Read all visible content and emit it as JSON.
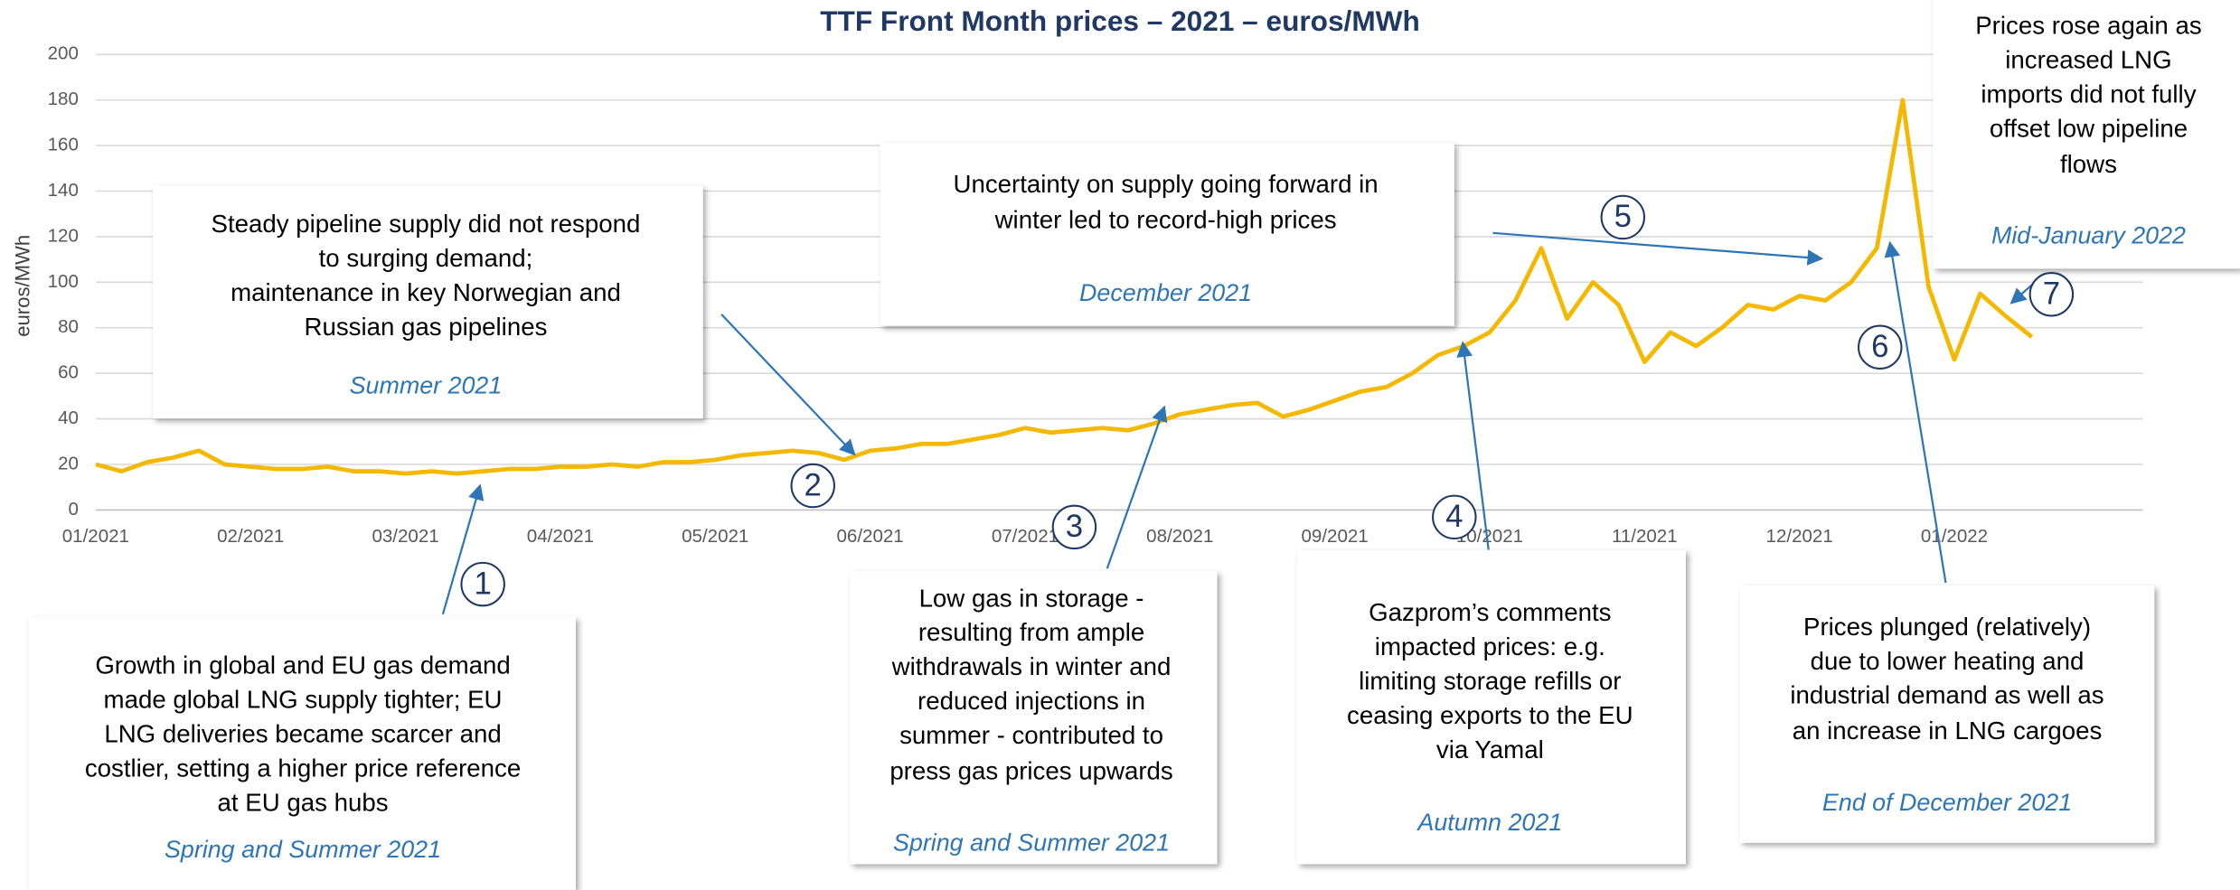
{
  "chart_data": {
    "type": "line",
    "title": "TTF Front Month prices – 2021 – euros/MWh",
    "y_label": "euros/MWh",
    "categories": [
      "01/2021",
      null,
      null,
      null,
      null,
      null,
      "02/2021",
      null,
      null,
      null,
      null,
      null,
      "03/2021",
      null,
      null,
      null,
      null,
      null,
      "04/2021",
      null,
      null,
      null,
      null,
      null,
      "05/2021",
      null,
      null,
      null,
      null,
      null,
      "06/2021",
      null,
      null,
      null,
      null,
      null,
      "07/2021",
      null,
      null,
      null,
      null,
      null,
      "08/2021",
      null,
      null,
      null,
      null,
      null,
      "09/2021",
      null,
      null,
      null,
      null,
      null,
      "10/2021",
      null,
      null,
      null,
      null,
      null,
      "11/2021",
      null,
      null,
      null,
      null,
      null,
      "12/2021",
      null,
      null,
      null,
      null,
      null,
      "01/2022",
      null,
      null,
      null
    ],
    "series": [
      {
        "name": "TTF Front Month",
        "color": "#f5b800",
        "values": [
          20,
          17,
          21,
          23,
          26,
          20,
          19,
          18,
          18,
          19,
          17,
          17,
          16,
          17,
          16,
          17,
          18,
          18,
          19,
          19,
          20,
          19,
          21,
          21,
          22,
          24,
          25,
          26,
          25,
          22,
          26,
          27,
          29,
          29,
          31,
          33,
          36,
          34,
          35,
          36,
          35,
          38,
          42,
          44,
          46,
          47,
          41,
          44,
          48,
          52,
          54,
          60,
          68,
          72,
          78,
          92,
          115,
          84,
          100,
          90,
          65,
          78,
          72,
          80,
          90,
          88,
          94,
          92,
          100,
          115,
          180,
          98,
          66,
          95,
          85,
          76
        ]
      }
    ],
    "ylim": [
      0,
      200
    ],
    "yticks": [
      0,
      20,
      40,
      60,
      80,
      100,
      120,
      140,
      160,
      180,
      200
    ],
    "grid": true,
    "annotations": [
      {
        "number": "1",
        "lines": [
          "Growth in global and EU gas demand",
          "made global LNG supply tighter; EU",
          "LNG deliveries became scarcer and",
          "costlier, setting a higher price reference",
          "at EU gas hubs"
        ],
        "period": "Spring and Summer 2021"
      },
      {
        "number": "2",
        "lines": [
          "Steady pipeline supply did not respond",
          "to surging demand;",
          "maintenance in key Norwegian and",
          "Russian gas pipelines"
        ],
        "period": "Summer 2021"
      },
      {
        "number": "3",
        "lines": [
          "Low gas in storage  -",
          "resulting from ample",
          "withdrawals in winter and",
          "reduced injections in",
          "summer - contributed to",
          "press gas prices upwards"
        ],
        "period": "Spring and Summer 2021"
      },
      {
        "number": "4",
        "lines": [
          "Gazprom’s comments",
          "impacted prices: e.g.",
          "limiting storage refills or",
          "ceasing exports to the EU",
          "via Yamal"
        ],
        "period": "Autumn 2021"
      },
      {
        "number": "5",
        "lines": [
          "Uncertainty on supply going forward in",
          "winter led to record-high prices"
        ],
        "period": "December 2021"
      },
      {
        "number": "6",
        "lines": [
          "Prices plunged (relatively)",
          "due to lower heating and",
          "industrial demand as well as",
          "an increase in LNG cargoes"
        ],
        "period": "End of December 2021"
      },
      {
        "number": "7",
        "lines": [
          "Prices rose again as",
          "increased LNG",
          "imports did not fully",
          "offset low pipeline",
          "flows"
        ],
        "period": "Mid-January 2022"
      }
    ]
  }
}
